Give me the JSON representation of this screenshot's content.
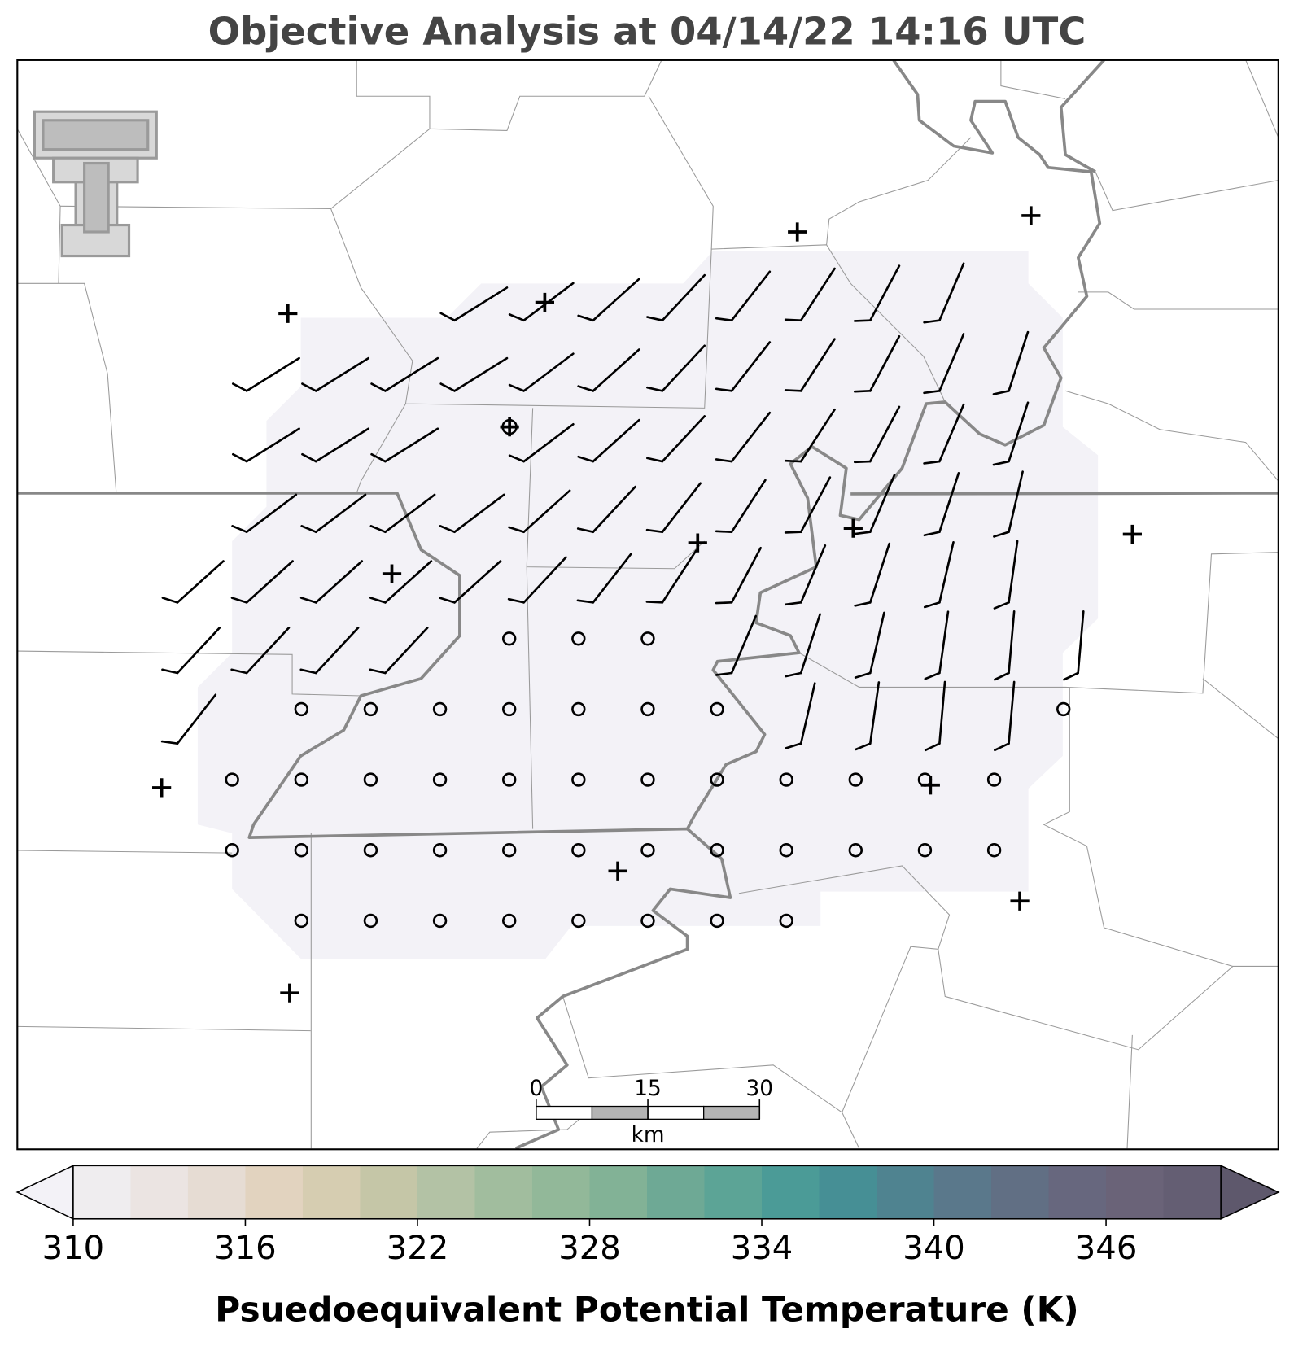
{
  "title": "Objective Analysis at 04/14/22 14:16 UTC",
  "scale_bar": {
    "ticks": [
      0,
      15,
      30
    ],
    "unit": "km"
  },
  "colorbar": {
    "label": "Psuedoequivalent Potential Temperature (K)",
    "range": [
      310,
      350
    ],
    "ticks": [
      310,
      316,
      322,
      328,
      334,
      340,
      346
    ],
    "colors": [
      "#efedef",
      "#ebe4e2",
      "#e6dcd3",
      "#e2d3bf",
      "#d6cdb1",
      "#c5c6a7",
      "#b3c2a5",
      "#a1bd9e",
      "#92b899",
      "#82b296",
      "#6ea995",
      "#5ca496",
      "#4b9b97",
      "#468f95",
      "#4f8390",
      "#5a788b",
      "#616f84",
      "#67677e",
      "#6a6378",
      "#645e73"
    ],
    "under_color": "#f3f2f7",
    "over_color": "#5e586c"
  }
}
